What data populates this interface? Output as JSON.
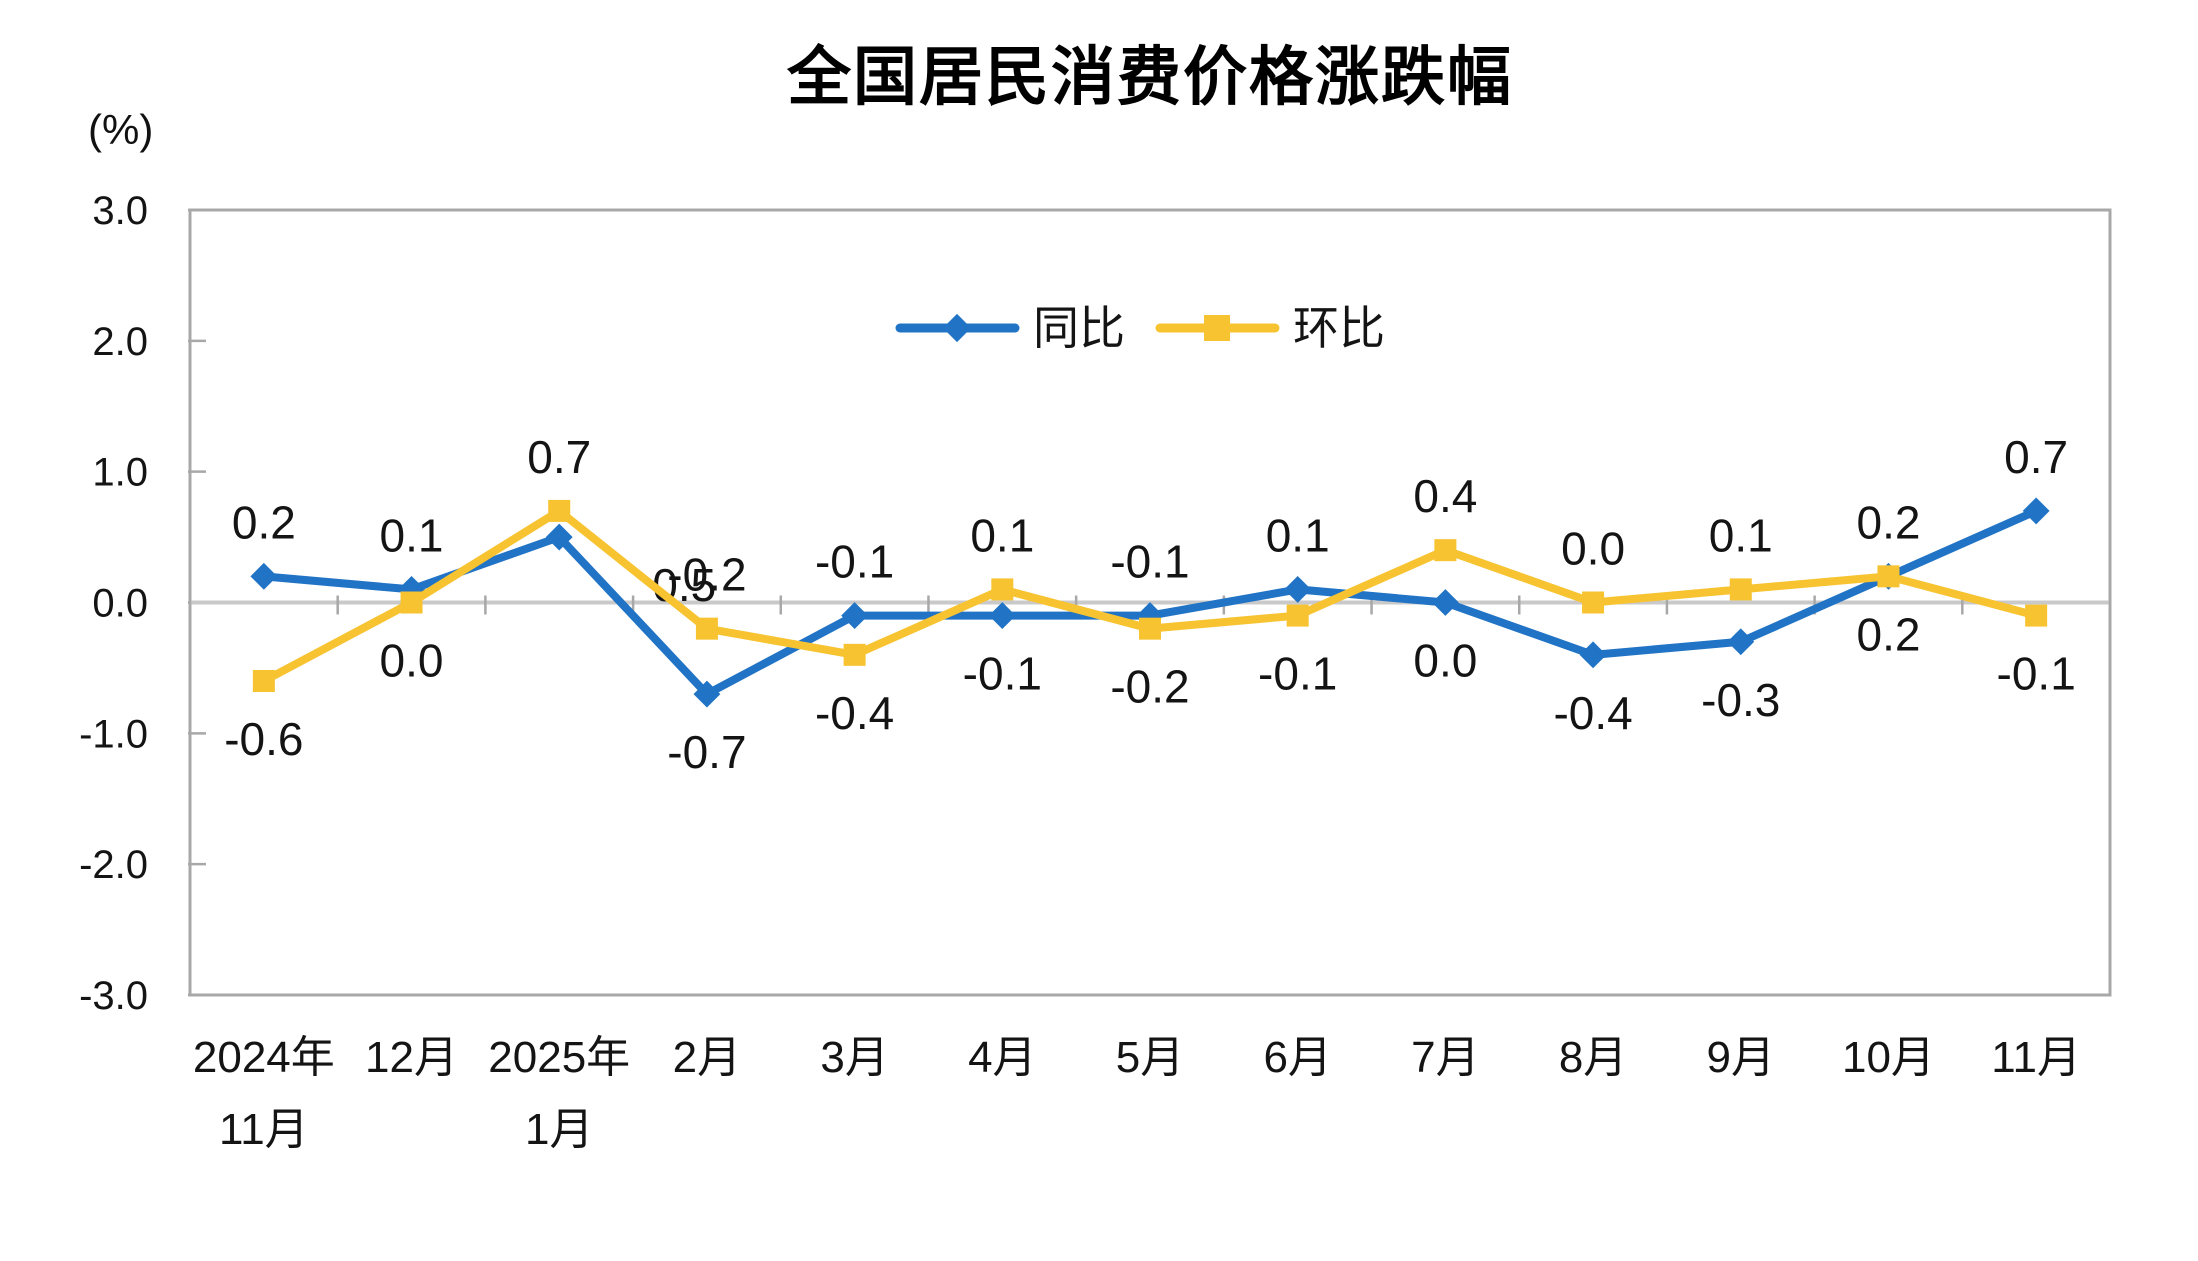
{
  "title": "全国居民消费价格涨跌幅",
  "y_axis_unit": "(%)",
  "chart_data": {
    "type": "line",
    "title": "全国居民消费价格涨跌幅",
    "ylabel": "(%)",
    "ylim": [
      -3.0,
      3.0
    ],
    "y_ticks": [
      "3.0",
      "2.0",
      "1.0",
      "0.0",
      "-1.0",
      "-2.0",
      "-3.0"
    ],
    "categories": [
      "2024年\n11月",
      "12月",
      "2025年\n1月",
      "2月",
      "3月",
      "4月",
      "5月",
      "6月",
      "7月",
      "8月",
      "9月",
      "10月",
      "11月"
    ],
    "grid": "zero-line-only",
    "legend_position": "inside-top-center",
    "series": [
      {
        "name": "同比",
        "color": "#2173C5",
        "marker": "diamond",
        "values": [
          0.2,
          0.1,
          0.5,
          -0.7,
          -0.1,
          -0.1,
          -0.1,
          0.1,
          0.0,
          -0.4,
          -0.3,
          0.2,
          0.7
        ],
        "label_sides": [
          "above",
          "above",
          "right-below",
          "below",
          "above",
          "below",
          "above",
          "above",
          "below",
          "below",
          "below",
          "above",
          "above"
        ]
      },
      {
        "name": "环比",
        "color": "#F7C331",
        "marker": "square",
        "values": [
          -0.6,
          0.0,
          0.7,
          -0.2,
          -0.4,
          0.1,
          -0.2,
          -0.1,
          0.4,
          0.0,
          0.1,
          0.2,
          -0.1
        ],
        "label_sides": [
          "below",
          "below",
          "above",
          "above",
          "below",
          "above",
          "below",
          "below",
          "above",
          "above",
          "above",
          "below",
          "below"
        ]
      }
    ],
    "colors": {
      "axis": "#a8a8a8",
      "zero_line": "#c9c9c9",
      "label": "#141414"
    }
  }
}
